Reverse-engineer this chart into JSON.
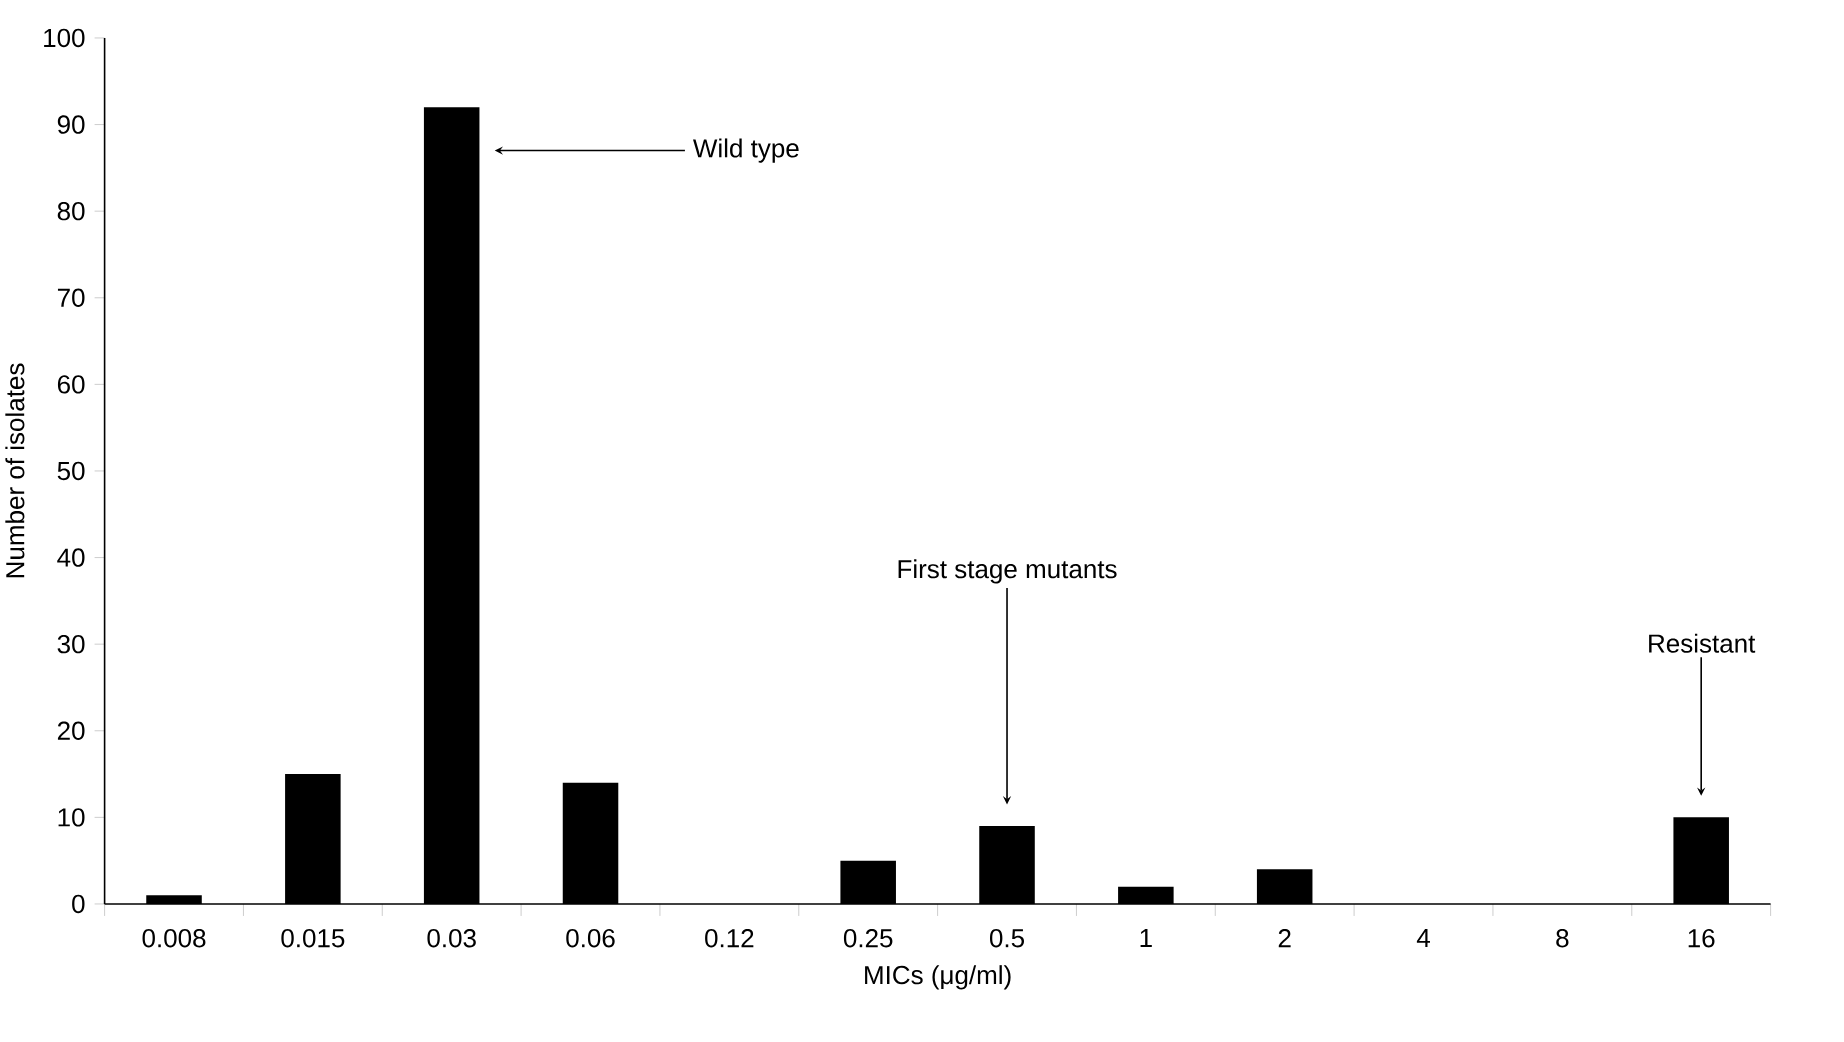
{
  "chart_data": {
    "type": "bar",
    "xlabel": "MICs (μg/ml)",
    "ylabel": "Number of isolates",
    "categories": [
      "0.008",
      "0.015",
      "0.03",
      "0.06",
      "0.12",
      "0.25",
      "0.5",
      "1",
      "2",
      "4",
      "8",
      "16"
    ],
    "values": [
      1,
      15,
      92,
      14,
      0,
      5,
      9,
      2,
      4,
      0,
      0,
      10
    ],
    "color": "#000000",
    "ylim": [
      0,
      100
    ],
    "yticks": [
      0,
      10,
      20,
      30,
      40,
      50,
      60,
      70,
      80,
      90,
      100
    ],
    "grid": false,
    "annotations": [
      "Wild type",
      "First stage mutants",
      "Resistant"
    ]
  }
}
